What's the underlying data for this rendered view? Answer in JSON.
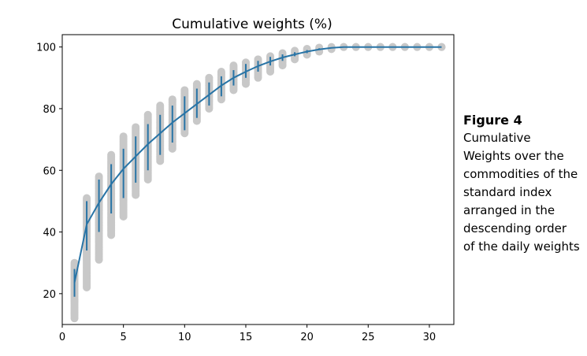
{
  "caption": {
    "label": "Figure 4",
    "text": "Cumulative Weights over the commodities of the standard index arranged in the descending order of the daily weights"
  },
  "chart_data": {
    "type": "line",
    "title": "Cumulative weights (%)",
    "xlabel": "",
    "ylabel": "",
    "xlim": [
      0,
      32
    ],
    "ylim": [
      10,
      104
    ],
    "xticks": [
      0,
      5,
      10,
      15,
      20,
      25,
      30
    ],
    "yticks": [
      20,
      40,
      60,
      80,
      100
    ],
    "grid": false,
    "x": [
      1,
      2,
      3,
      4,
      5,
      6,
      7,
      8,
      9,
      10,
      11,
      12,
      13,
      14,
      15,
      16,
      17,
      18,
      19,
      20,
      21,
      22,
      23,
      24,
      25,
      26,
      27,
      28,
      29,
      30,
      31
    ],
    "mean": [
      23.5,
      42.5,
      49.5,
      55.5,
      60.5,
      64.5,
      68.5,
      72,
      75.5,
      78.5,
      81.5,
      84.5,
      87.5,
      90,
      92,
      93.8,
      95.3,
      96.6,
      97.6,
      98.5,
      99.2,
      99.7,
      100,
      100,
      100,
      100,
      100,
      100,
      100,
      100,
      100
    ],
    "err_low": [
      19,
      34,
      40,
      46,
      51,
      56,
      60,
      65,
      69,
      73,
      77,
      81,
      84,
      87.5,
      90,
      92,
      94,
      95.5,
      97,
      98,
      99,
      99.6,
      100,
      100,
      100,
      100,
      100,
      100,
      100,
      100,
      100
    ],
    "err_high": [
      28,
      50,
      57,
      62,
      67,
      71,
      75,
      78,
      81,
      84,
      86.5,
      88.5,
      90.5,
      92.5,
      94.5,
      95.5,
      96.8,
      97.6,
      98.3,
      99,
      99.6,
      99.9,
      100,
      100,
      100,
      100,
      100,
      100,
      100,
      100,
      100
    ],
    "range_min": [
      12,
      22,
      31,
      39,
      45,
      52,
      57,
      63,
      67,
      72,
      76,
      80,
      83,
      86,
      88,
      90,
      92,
      94,
      96,
      97.5,
      98.5,
      99.3,
      100,
      100,
      100,
      100,
      100,
      100,
      100,
      100,
      100
    ],
    "range_max": [
      30,
      51,
      58,
      65,
      71,
      74,
      78,
      81,
      83,
      86,
      88,
      90,
      92,
      94,
      95,
      96,
      97,
      98,
      98.8,
      99.4,
      99.8,
      100,
      100,
      100,
      100,
      100,
      100,
      100,
      100,
      100,
      100
    ],
    "colors": {
      "line": "#2874a6",
      "dots": "#c8c8c8",
      "axes": "#000000"
    }
  }
}
